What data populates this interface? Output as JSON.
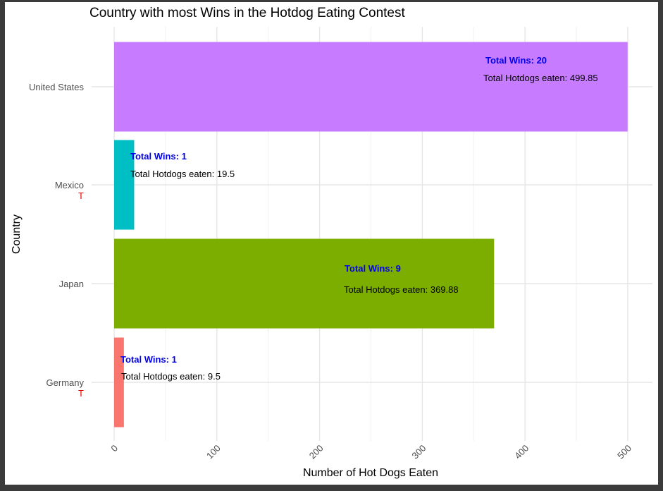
{
  "chart_data": {
    "type": "bar",
    "orientation": "horizontal",
    "title": "Country with most Wins in the Hotdog Eating Contest",
    "xlabel": "Number of Hot Dogs Eaten",
    "ylabel": "Country",
    "xlim": [
      0,
      500
    ],
    "xticks": [
      "0",
      "100",
      "200",
      "300",
      "400",
      "500"
    ],
    "grid": true,
    "legend": "none",
    "categories": [
      "United States",
      "Mexico",
      "Japan",
      "Germany"
    ],
    "category_markers": [
      "",
      "T",
      "",
      "T"
    ],
    "values": [
      499.85,
      19.5,
      369.88,
      9.5
    ],
    "wins": [
      20,
      1,
      9,
      1
    ],
    "colors": [
      "#c77cff",
      "#00bfc4",
      "#7cae00",
      "#f8766d"
    ],
    "wins_labels": [
      "Total Wins: 20",
      "Total Wins: 1",
      "Total Wins: 9",
      "Total Wins: 1"
    ],
    "hotdog_labels": [
      "Total Hotdogs eaten: 499.85",
      "Total Hotdogs eaten: 19.5",
      "Total Hotdogs eaten: 369.88",
      "Total Hotdogs eaten: 9.5"
    ],
    "label_color": "#0000ee",
    "marker_color": "#e00000"
  }
}
